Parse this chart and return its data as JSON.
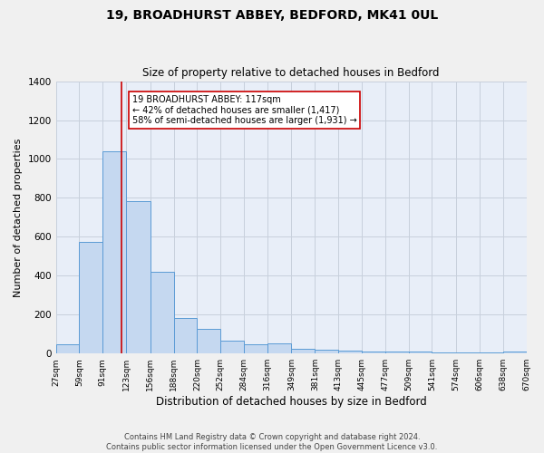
{
  "title1": "19, BROADHURST ABBEY, BEDFORD, MK41 0UL",
  "title2": "Size of property relative to detached houses in Bedford",
  "xlabel": "Distribution of detached houses by size in Bedford",
  "ylabel": "Number of detached properties",
  "bar_left_edges": [
    27,
    59,
    91,
    123,
    156,
    188,
    220,
    252,
    284,
    316,
    349,
    381,
    413,
    445,
    477,
    509,
    541,
    574,
    606,
    638
  ],
  "bar_widths": [
    32,
    32,
    32,
    33,
    32,
    32,
    32,
    32,
    32,
    33,
    32,
    32,
    32,
    32,
    32,
    32,
    33,
    32,
    32,
    32
  ],
  "bar_heights": [
    47,
    572,
    1040,
    783,
    422,
    182,
    125,
    65,
    47,
    50,
    25,
    20,
    15,
    10,
    10,
    10,
    5,
    5,
    5,
    10
  ],
  "bar_color": "#c5d8f0",
  "bar_edge_color": "#5b9bd5",
  "grid_color": "#c8d0dc",
  "bg_color": "#e8eef8",
  "fig_bg_color": "#f0f0f0",
  "vline_x": 117,
  "vline_color": "#cc0000",
  "annotation_text": "19 BROADHURST ABBEY: 117sqm\n← 42% of detached houses are smaller (1,417)\n58% of semi-detached houses are larger (1,931) →",
  "annotation_box_color": "#ffffff",
  "annotation_box_edge": "#cc0000",
  "tick_labels": [
    "27sqm",
    "59sqm",
    "91sqm",
    "123sqm",
    "156sqm",
    "188sqm",
    "220sqm",
    "252sqm",
    "284sqm",
    "316sqm",
    "349sqm",
    "381sqm",
    "413sqm",
    "445sqm",
    "477sqm",
    "509sqm",
    "541sqm",
    "574sqm",
    "606sqm",
    "638sqm",
    "670sqm"
  ],
  "ylim": [
    0,
    1400
  ],
  "yticks": [
    0,
    200,
    400,
    600,
    800,
    1000,
    1200,
    1400
  ],
  "footer": "Contains HM Land Registry data © Crown copyright and database right 2024.\nContains public sector information licensed under the Open Government Licence v3.0."
}
